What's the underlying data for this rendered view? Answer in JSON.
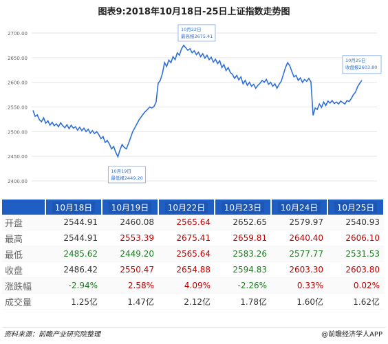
{
  "title": "图表9:2018年10月18日-25日上证指数走势图",
  "chart_data": {
    "type": "line",
    "ylim": [
      2400,
      2700
    ],
    "yticks": [
      "2400.00",
      "2450.00",
      "2500.00",
      "2550.00",
      "2600.00",
      "2650.00",
      "2700.00"
    ],
    "series": [
      {
        "y": [
          2543,
          2531,
          2534,
          2524,
          2520,
          2528,
          2517,
          2522,
          2513,
          2519,
          2512,
          2516,
          2510,
          2518,
          2512,
          2508,
          2514,
          2506,
          2513,
          2507,
          2510,
          2503,
          2509,
          2502,
          2507,
          2500,
          2505,
          2497,
          2502,
          2496,
          2500,
          2494,
          2486,
          2490,
          2478,
          2482,
          2475,
          2465,
          2470,
          2458,
          2449,
          2463,
          2474,
          2468,
          2465,
          2476,
          2488,
          2500,
          2508,
          2516,
          2524,
          2530,
          2536,
          2541,
          2545,
          2550,
          2548,
          2551,
          2560,
          2598,
          2604,
          2618,
          2640,
          2632,
          2645,
          2640,
          2652,
          2646,
          2660,
          2655,
          2668,
          2675,
          2670,
          2665,
          2668,
          2660,
          2664,
          2656,
          2661,
          2652,
          2658,
          2649,
          2655,
          2646,
          2651,
          2641,
          2647,
          2638,
          2644,
          2630,
          2636,
          2624,
          2630,
          2620,
          2616,
          2608,
          2614,
          2605,
          2611,
          2597,
          2604,
          2594,
          2600,
          2592,
          2596,
          2588,
          2594,
          2598,
          2604,
          2600,
          2606,
          2596,
          2600,
          2592,
          2597,
          2588,
          2596,
          2602,
          2616,
          2630,
          2640,
          2634,
          2622,
          2611,
          2614,
          2604,
          2609,
          2600,
          2606,
          2602,
          2608,
          2601,
          2533,
          2548,
          2545,
          2556,
          2549,
          2560,
          2553,
          2562,
          2558,
          2563,
          2557,
          2560,
          2556,
          2562,
          2559,
          2556,
          2563,
          2561,
          2567,
          2575,
          2580,
          2591,
          2598,
          2604
        ]
      }
    ],
    "annotations": [
      {
        "date": "10月19日",
        "label": "最低报2449.20"
      },
      {
        "date": "10月22日",
        "label": "最高报2675.41"
      },
      {
        "date": "10月25日",
        "label": "收盘报2603.80"
      }
    ],
    "grid": true
  },
  "table": {
    "headers": [
      "",
      "10月18日",
      "10月19日",
      "10月22日",
      "10月23日",
      "10月24日",
      "10月25日"
    ],
    "rows": [
      {
        "label": "开盘",
        "cells": [
          "2544.91",
          "2460.08",
          "2565.64",
          "2652.65",
          "2579.97",
          "2540.93"
        ],
        "colors": [
          "neu",
          "neu",
          "up",
          "neu",
          "neu",
          "neu"
        ]
      },
      {
        "label": "最高",
        "cells": [
          "2544.91",
          "2553.39",
          "2675.41",
          "2659.81",
          "2640.40",
          "2606.10"
        ],
        "colors": [
          "neu",
          "up",
          "up",
          "up",
          "up",
          "up"
        ]
      },
      {
        "label": "最低",
        "cells": [
          "2485.62",
          "2449.20",
          "2565.64",
          "2583.26",
          "2577.77",
          "2531.53"
        ],
        "colors": [
          "down",
          "down",
          "up",
          "down",
          "down",
          "down"
        ]
      },
      {
        "label": "收盘",
        "cells": [
          "2486.42",
          "2550.47",
          "2654.88",
          "2594.83",
          "2603.30",
          "2603.80"
        ],
        "colors": [
          "neu",
          "up",
          "up",
          "down",
          "up",
          "up"
        ]
      },
      {
        "label": "涨跌幅",
        "cells": [
          "-2.94%",
          "2.58%",
          "4.09%",
          "-2.26%",
          "0.33%",
          "0.02%"
        ],
        "colors": [
          "down",
          "up",
          "up",
          "down",
          "up",
          "up"
        ]
      },
      {
        "label": "成交量",
        "cells": [
          "1.25亿",
          "1.47亿",
          "2.12亿",
          "1.78亿",
          "1.60亿",
          "1.62亿"
        ],
        "colors": [
          "neu",
          "neu",
          "neu",
          "neu",
          "neu",
          "neu"
        ]
      }
    ]
  },
  "footer": {
    "source": "资料来源：前瞻产业研究院整理",
    "brand": "@前瞻经济学人APP"
  },
  "colors": {
    "line": "#2f6fd6",
    "header": "#1f5fc4",
    "up": "#c00000",
    "down": "#1d7a20"
  }
}
